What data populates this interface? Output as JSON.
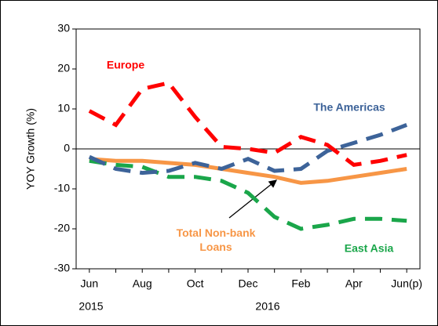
{
  "chart_data": {
    "type": "line",
    "y_label": "YOY Growth (%)",
    "categories": [
      "Jun",
      null,
      "Aug",
      null,
      "Oct",
      null,
      "Dec",
      null,
      "Feb",
      null,
      "Apr",
      null,
      "Jun(p)"
    ],
    "years": [
      "2015",
      "2016"
    ],
    "ylim": [
      -30,
      30
    ],
    "yticks": [
      -30,
      -20,
      -10,
      0,
      10,
      20,
      30
    ],
    "series": [
      {
        "name": "Europe",
        "color": "#ff0000",
        "dash": true,
        "values": [
          9.5,
          6,
          15,
          16.5,
          8,
          0.5,
          0,
          -1,
          3,
          1,
          -4,
          -3,
          -1.5
        ]
      },
      {
        "name": "The Americas",
        "color": "#3d6399",
        "dash": true,
        "values": [
          -2,
          -5,
          -6,
          -5.5,
          -3.5,
          -5,
          -2.5,
          -5.5,
          -5,
          -0.5,
          1.5,
          3.5,
          6
        ]
      },
      {
        "name": "East Asia",
        "color": "#1aa64a",
        "dash": true,
        "values": [
          -3,
          -4,
          -4.5,
          -7,
          -7,
          -8,
          -11,
          -17,
          -20,
          -19,
          -17.5,
          -17.5,
          -18
        ]
      },
      {
        "name": "Total Non-bank Loans",
        "color": "#f79646",
        "dash": false,
        "values": [
          -2.5,
          -3,
          -3,
          -3.5,
          -4,
          -5,
          -6,
          -7,
          -8.5,
          -8,
          -7,
          -6,
          -5
        ]
      }
    ]
  }
}
